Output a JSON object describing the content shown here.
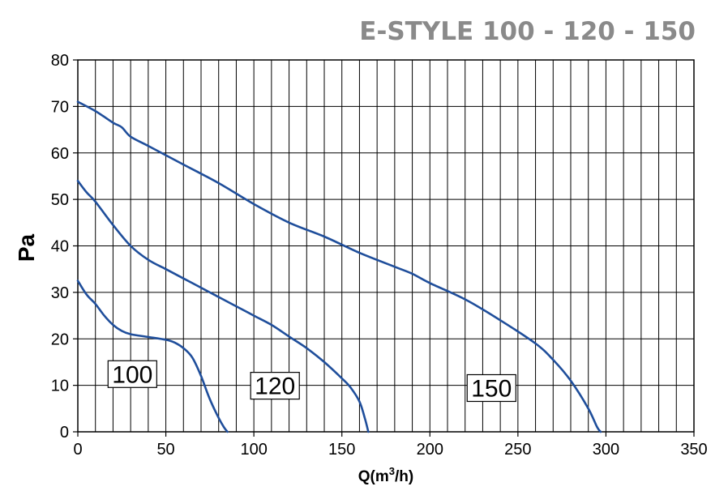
{
  "chart_data": {
    "type": "line",
    "title": "E-STYLE 100 - 120 - 150",
    "xlabel": "Q(m³/h)",
    "xlabel_parts": {
      "main": "Q(m",
      "sup": "3",
      "tail": "/h)"
    },
    "ylabel": "Pa",
    "xlim": [
      0,
      350
    ],
    "ylim": [
      0,
      80
    ],
    "x_ticks": [
      0,
      50,
      100,
      150,
      200,
      250,
      300,
      350
    ],
    "y_ticks": [
      0,
      10,
      20,
      30,
      40,
      50,
      60,
      70,
      80
    ],
    "x_minor_step": 10,
    "y_minor_step": 10,
    "grid": true,
    "legend": "none",
    "series": [
      {
        "name": "100",
        "color": "#1f4e9b",
        "points": [
          [
            0,
            32.5
          ],
          [
            5,
            29.5
          ],
          [
            10,
            27.5
          ],
          [
            15,
            25
          ],
          [
            20,
            23
          ],
          [
            25,
            21.7
          ],
          [
            30,
            21
          ],
          [
            40,
            20.4
          ],
          [
            50,
            19.8
          ],
          [
            55,
            19.2
          ],
          [
            60,
            18
          ],
          [
            65,
            16
          ],
          [
            70,
            12
          ],
          [
            75,
            7
          ],
          [
            80,
            3
          ],
          [
            83,
            1
          ],
          [
            85,
            0
          ]
        ]
      },
      {
        "name": "120",
        "color": "#1f4e9b",
        "points": [
          [
            0,
            54
          ],
          [
            5,
            51.5
          ],
          [
            10,
            49.5
          ],
          [
            20,
            44.5
          ],
          [
            30,
            40
          ],
          [
            40,
            37
          ],
          [
            50,
            35
          ],
          [
            60,
            33
          ],
          [
            70,
            31
          ],
          [
            80,
            29
          ],
          [
            90,
            27
          ],
          [
            100,
            25
          ],
          [
            110,
            23
          ],
          [
            120,
            20.5
          ],
          [
            130,
            18
          ],
          [
            140,
            15
          ],
          [
            150,
            11.5
          ],
          [
            155,
            9.5
          ],
          [
            160,
            6.5
          ],
          [
            163,
            3
          ],
          [
            165,
            0
          ]
        ]
      },
      {
        "name": "150",
        "color": "#1f4e9b",
        "points": [
          [
            0,
            71
          ],
          [
            10,
            69
          ],
          [
            20,
            66.5
          ],
          [
            25,
            65.5
          ],
          [
            30,
            63.5
          ],
          [
            40,
            61.5
          ],
          [
            60,
            57.5
          ],
          [
            80,
            53.5
          ],
          [
            100,
            49
          ],
          [
            120,
            45
          ],
          [
            140,
            42
          ],
          [
            160,
            38.5
          ],
          [
            180,
            35.5
          ],
          [
            190,
            34
          ],
          [
            200,
            32
          ],
          [
            220,
            28.5
          ],
          [
            240,
            24
          ],
          [
            260,
            19
          ],
          [
            270,
            15.5
          ],
          [
            280,
            11
          ],
          [
            290,
            5
          ],
          [
            295,
            1
          ],
          [
            297,
            0
          ]
        ]
      }
    ],
    "curve_labels": [
      {
        "text": "100",
        "x": 31,
        "y": 12.5
      },
      {
        "text": "120",
        "x": 112,
        "y": 10
      },
      {
        "text": "150",
        "x": 235,
        "y": 9.5
      }
    ]
  }
}
